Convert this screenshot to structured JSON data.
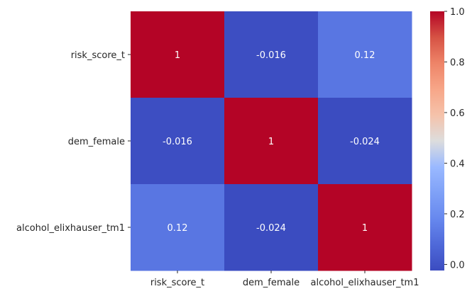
{
  "chart_data": {
    "type": "heatmap",
    "title": "",
    "xlabel": "",
    "ylabel": "",
    "x_categories": [
      "risk_score_t",
      "dem_female",
      "alcohol_elixhauser_tm1"
    ],
    "y_categories": [
      "risk_score_t",
      "dem_female",
      "alcohol_elixhauser_tm1"
    ],
    "values": [
      [
        1,
        -0.016,
        0.12
      ],
      [
        -0.016,
        1,
        -0.024
      ],
      [
        0.12,
        -0.024,
        1
      ]
    ],
    "annotations": [
      [
        "1",
        "-0.016",
        "0.12"
      ],
      [
        "-0.016",
        "1",
        "-0.024"
      ],
      [
        "0.12",
        "-0.024",
        "1"
      ]
    ],
    "colormap": "coolwarm",
    "colorbar": {
      "vmin": -0.024,
      "vmax": 1.0,
      "ticks": [
        0.0,
        0.2,
        0.4,
        0.6,
        0.8,
        1.0
      ],
      "tick_labels": [
        "0.0",
        "0.2",
        "0.4",
        "0.6",
        "0.8",
        "1.0"
      ]
    },
    "colors": {
      "low": "#3b4cc0",
      "mid": "#dddddd",
      "high": "#b40426",
      "text_light": "#ffffff",
      "text_dark": "#262626"
    }
  }
}
